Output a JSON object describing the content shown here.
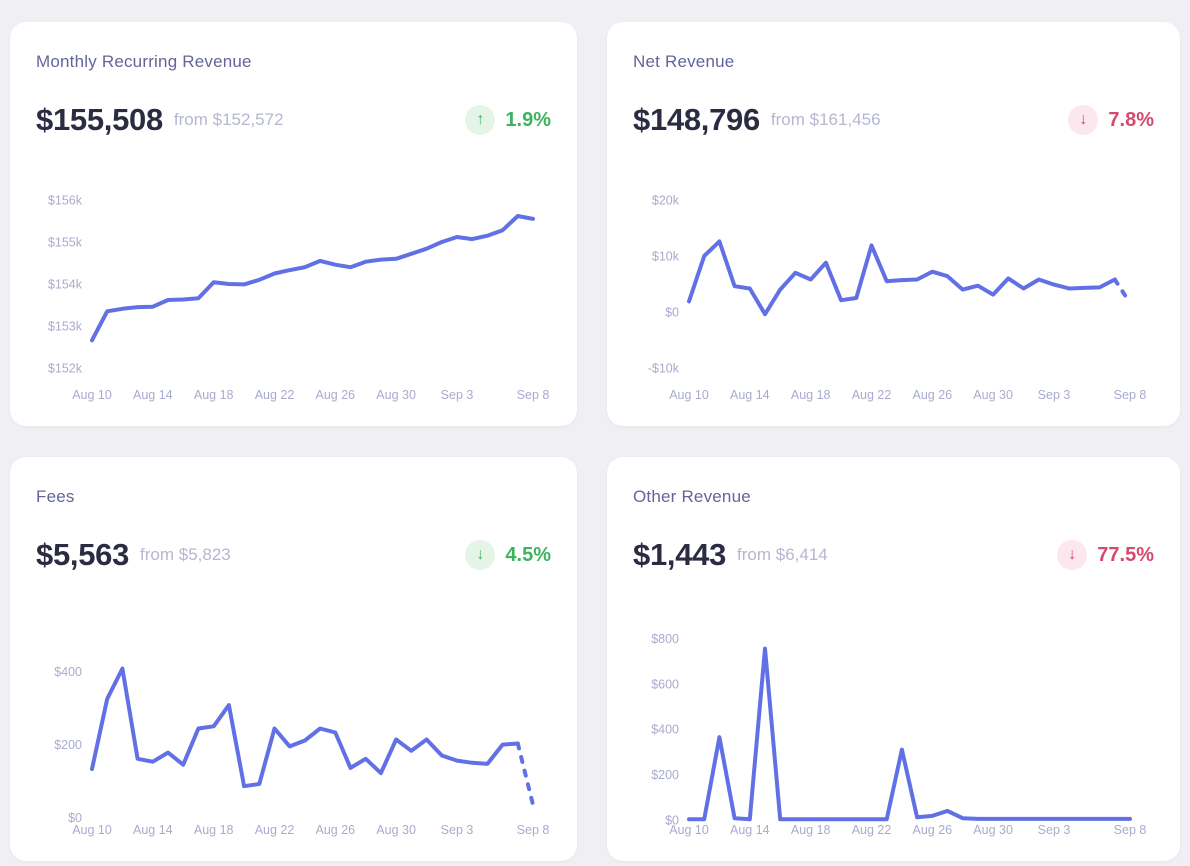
{
  "theme": {
    "page_bg": "#f0f0f4",
    "card_bg": "#ffffff",
    "line_color": "#6171e5",
    "title_color": "#63659a",
    "value_color": "#2b2c41",
    "from_color": "#b5b7d1",
    "axis_label_color": "#a9abce",
    "positive": {
      "fg": "#3cb45f",
      "bg": "#e4f5e8"
    },
    "negative": {
      "fg": "#d5486f",
      "bg": "#fce7ee"
    }
  },
  "cards": [
    {
      "title": "Monthly Recurring Revenue",
      "value": "$155,508",
      "from_label": "from $152,572",
      "change_pct": "1.9%",
      "arrow_glyph": "↑",
      "direction": "up",
      "sentiment": "positive"
    },
    {
      "title": "Net Revenue",
      "value": "$148,796",
      "from_label": "from $161,456",
      "change_pct": "7.8%",
      "arrow_glyph": "↓",
      "direction": "down",
      "sentiment": "negative"
    },
    {
      "title": "Fees",
      "value": "$5,563",
      "from_label": "from $5,823",
      "change_pct": "4.5%",
      "arrow_glyph": "↓",
      "direction": "down",
      "sentiment": "positive"
    },
    {
      "title": "Other Revenue",
      "value": "$1,443",
      "from_label": "from $6,414",
      "change_pct": "77.5%",
      "arrow_glyph": "↓",
      "direction": "down",
      "sentiment": "negative"
    }
  ],
  "chart_data": [
    {
      "type": "line",
      "title": "Monthly Recurring Revenue",
      "unit": "USD thousands",
      "n_points": 30,
      "x_range": [
        "Aug 10",
        "Sep 8"
      ],
      "x_tick_labels": [
        "Aug 10",
        "Aug 14",
        "Aug 18",
        "Aug 22",
        "Aug 26",
        "Aug 30",
        "Sep 3",
        "Sep 8"
      ],
      "x_tick_indices": [
        0,
        4,
        8,
        12,
        16,
        20,
        24,
        29
      ],
      "values": [
        152.66,
        153.35,
        153.41,
        153.45,
        153.46,
        153.62,
        153.63,
        153.66,
        154.04,
        154.0,
        153.99,
        154.1,
        154.25,
        154.33,
        154.4,
        154.55,
        154.46,
        154.4,
        154.53,
        154.58,
        154.6,
        154.72,
        154.84,
        155.0,
        155.12,
        155.07,
        155.15,
        155.28,
        155.62,
        155.55
      ],
      "yticks": [
        {
          "value": 156,
          "label": "$156k"
        },
        {
          "value": 155,
          "label": "$155k"
        },
        {
          "value": 154,
          "label": "$154k"
        },
        {
          "value": 153,
          "label": "$153k"
        },
        {
          "value": 152,
          "label": "$152k"
        }
      ],
      "ylim": [
        152,
        156
      ],
      "dashed_tail_segments": 0,
      "grid": false,
      "legend": false
    },
    {
      "type": "line",
      "title": "Net Revenue",
      "unit": "USD thousands",
      "n_points": 30,
      "x_range": [
        "Aug 10",
        "Sep 8"
      ],
      "x_tick_labels": [
        "Aug 10",
        "Aug 14",
        "Aug 18",
        "Aug 22",
        "Aug 26",
        "Aug 30",
        "Sep 3",
        "Sep 8"
      ],
      "x_tick_indices": [
        0,
        4,
        8,
        12,
        16,
        20,
        24,
        29
      ],
      "values": [
        1.9,
        10.0,
        12.6,
        4.6,
        4.2,
        -0.4,
        4.0,
        7.0,
        5.8,
        8.8,
        2.1,
        2.5,
        11.9,
        5.5,
        5.7,
        5.8,
        7.2,
        6.4,
        4.0,
        4.7,
        3.1,
        6.0,
        4.2,
        5.8,
        4.9,
        4.2,
        4.3,
        4.4,
        5.8,
        1.6
      ],
      "yticks": [
        {
          "value": 20,
          "label": "$20k"
        },
        {
          "value": 10,
          "label": "$10k"
        },
        {
          "value": 0,
          "label": "$0"
        },
        {
          "value": -10,
          "label": "-$10k"
        }
      ],
      "ylim": [
        -10,
        20
      ],
      "dashed_tail_segments": 1,
      "grid": false,
      "legend": false
    },
    {
      "type": "line",
      "title": "Fees",
      "unit": "USD",
      "n_points": 30,
      "x_range": [
        "Aug 10",
        "Sep 8"
      ],
      "x_tick_labels": [
        "Aug 10",
        "Aug 14",
        "Aug 18",
        "Aug 22",
        "Aug 26",
        "Aug 30",
        "Sep 3",
        "Sep 8"
      ],
      "x_tick_indices": [
        0,
        4,
        8,
        12,
        16,
        20,
        24,
        29
      ],
      "values": [
        133,
        325,
        408,
        161,
        153,
        178,
        145,
        244,
        250,
        308,
        86,
        92,
        244,
        195,
        211,
        244,
        233,
        136,
        161,
        122,
        214,
        183,
        214,
        170,
        156,
        150,
        147,
        200,
        203,
        35
      ],
      "yticks": [
        {
          "value": 400,
          "label": "$400"
        },
        {
          "value": 200,
          "label": "$200"
        },
        {
          "value": 0,
          "label": "$0"
        }
      ],
      "ylim": [
        40,
        500
      ],
      "dashed_tail_segments": 1,
      "grid": false,
      "legend": false
    },
    {
      "type": "line",
      "title": "Other Revenue",
      "unit": "USD",
      "n_points": 30,
      "x_range": [
        "Aug 10",
        "Sep 8"
      ],
      "x_tick_labels": [
        "Aug 10",
        "Aug 14",
        "Aug 18",
        "Aug 22",
        "Aug 26",
        "Aug 30",
        "Sep 3",
        "Sep 8"
      ],
      "x_tick_indices": [
        0,
        4,
        8,
        12,
        16,
        20,
        24,
        29
      ],
      "values": [
        3,
        3,
        365,
        8,
        3,
        755,
        3,
        3,
        3,
        3,
        3,
        3,
        3,
        3,
        310,
        12,
        18,
        40,
        8,
        5,
        5,
        5,
        5,
        5,
        5,
        5,
        5,
        5,
        5,
        5
      ],
      "yticks": [
        {
          "value": 800,
          "label": "$800"
        },
        {
          "value": 600,
          "label": "$600"
        },
        {
          "value": 400,
          "label": "$400"
        },
        {
          "value": 200,
          "label": "$200"
        },
        {
          "value": 0,
          "label": "$0"
        }
      ],
      "ylim": [
        75,
        815
      ],
      "dashed_tail_segments": 0,
      "grid": false,
      "legend": false
    }
  ]
}
